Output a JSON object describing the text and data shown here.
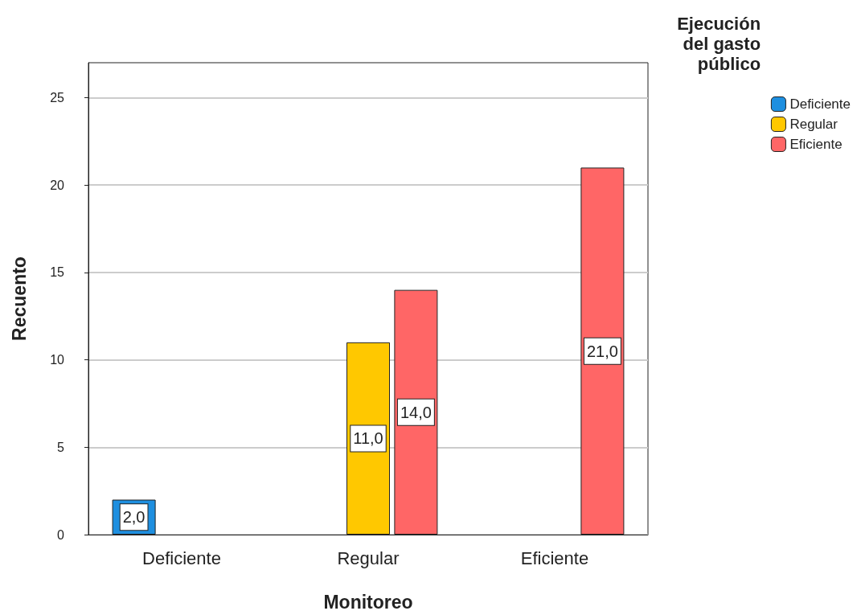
{
  "chart_data": {
    "type": "bar",
    "xlabel": "Monitoreo",
    "ylabel": "Recuento",
    "legend_title": "Ejecución\ndel gasto\npúblico",
    "categories": [
      "Deficiente",
      "Regular",
      "Eficiente"
    ],
    "series": [
      {
        "name": "Deficiente",
        "color": "#1e8fe0",
        "values": [
          2,
          null,
          null
        ],
        "value_labels": [
          "2,0",
          null,
          null
        ]
      },
      {
        "name": "Regular",
        "color": "#ffc800",
        "values": [
          null,
          11,
          null
        ],
        "value_labels": [
          null,
          "11,0",
          null
        ]
      },
      {
        "name": "Eficiente",
        "color": "#ff6666",
        "values": [
          null,
          14,
          21
        ],
        "value_labels": [
          null,
          "14,0",
          "21,0"
        ]
      }
    ],
    "ylim": [
      0,
      27
    ],
    "yticks": [
      0,
      5,
      10,
      15,
      20,
      25
    ],
    "grid": "y",
    "legend": "top right"
  }
}
